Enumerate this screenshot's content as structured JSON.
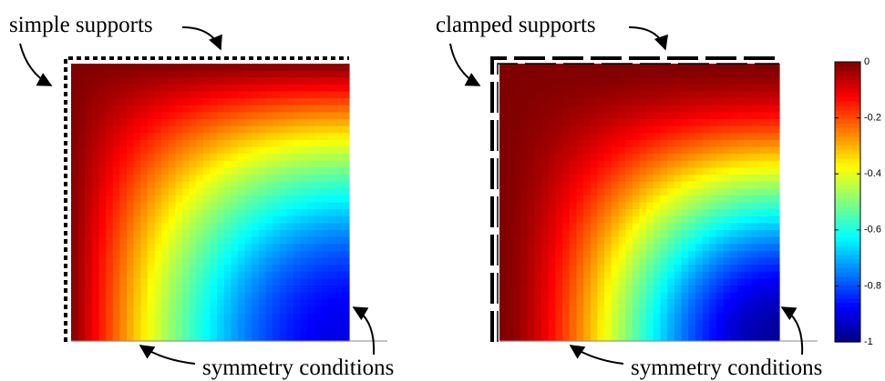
{
  "panels": [
    {
      "support_label": "simple supports",
      "symmetry_label": "symmetry conditions"
    },
    {
      "support_label": "clamped supports",
      "symmetry_label": "symmetry conditions"
    }
  ],
  "colorbar": {
    "lim": [
      -1,
      0
    ],
    "ticks": [
      0,
      -0.2,
      -0.4,
      -0.6,
      -0.8,
      -1
    ]
  }
}
